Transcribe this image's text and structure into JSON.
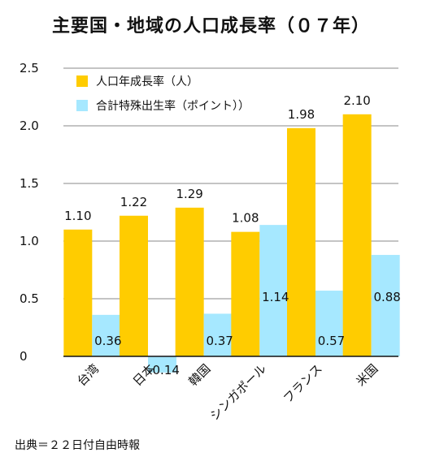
{
  "chart_data": {
    "type": "bar",
    "title": "主要国・地域の人口成長率（０７年）",
    "categories": [
      "台湾",
      "日本",
      "韓国",
      "シンガポール",
      "フランス",
      "米国"
    ],
    "series": [
      {
        "name": "人口年成長率（人）",
        "color": "#FFCC00",
        "values": [
          1.1,
          1.22,
          1.29,
          1.08,
          1.98,
          2.1
        ],
        "labels": [
          "1.10",
          "1.22",
          "1.29",
          "1.08",
          "1.98",
          "2.10"
        ]
      },
      {
        "name": "合計特殊出生率（ポイント））",
        "color": "#A6E8FF",
        "values": [
          0.36,
          -0.14,
          0.37,
          1.14,
          0.57,
          0.88
        ],
        "labels": [
          "0.36",
          "-0.14",
          "0.37",
          "1.14",
          "0.57",
          "0.88"
        ]
      }
    ],
    "yticks": [
      "0",
      "0.5",
      "1.0",
      "1.5",
      "2.0",
      "2.5"
    ],
    "ylim": [
      0,
      2.5
    ],
    "grid": true,
    "legend_position": "top-left"
  },
  "source_note": "出典＝２２日付自由時報"
}
